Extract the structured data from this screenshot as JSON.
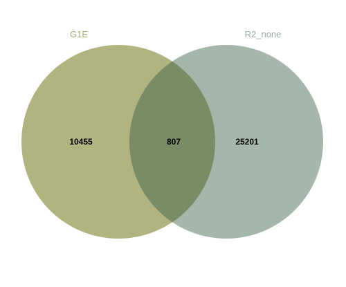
{
  "venn": {
    "sets": [
      {
        "name": "G1E",
        "color": "#9ea15e",
        "label_color": "#a7aa72"
      },
      {
        "name": "R2_none",
        "color": "#8ea595",
        "label_color": "#9aaea2"
      }
    ],
    "counts": {
      "only_first": "10455",
      "intersection": "807",
      "only_second": "25201"
    },
    "overlap_color": "#7a8c66"
  }
}
